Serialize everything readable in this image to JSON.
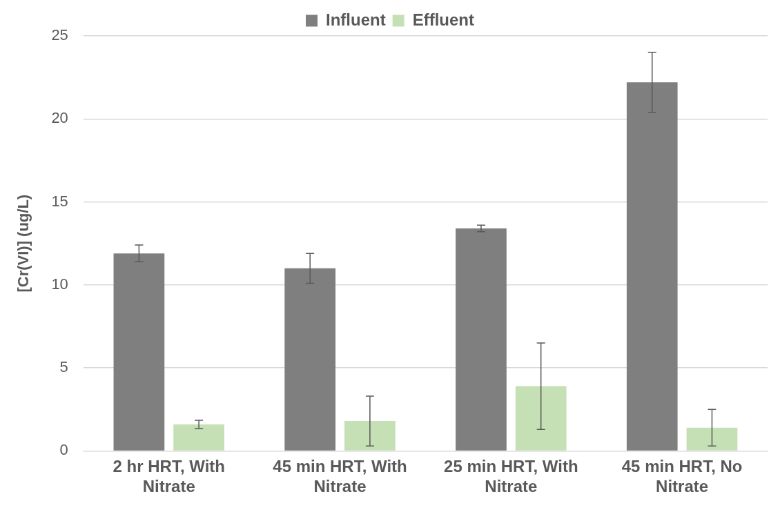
{
  "chart_data": {
    "type": "bar",
    "ylabel": "[Cr(VI)] (ug/L)",
    "categories": [
      "2 hr HRT, With Nitrate",
      "45 min HRT, With Nitrate",
      "25 min HRT, With Nitrate",
      "45 min HRT, No Nitrate"
    ],
    "series": [
      {
        "name": "Influent",
        "color": "#7f7f7f",
        "values": [
          11.9,
          11.0,
          13.4,
          22.2
        ],
        "errors": [
          0.5,
          0.9,
          0.2,
          1.8
        ]
      },
      {
        "name": "Effluent",
        "color": "#c5e0b4",
        "values": [
          1.6,
          1.8,
          3.9,
          1.4
        ],
        "errors": [
          0.25,
          1.5,
          2.6,
          1.1
        ]
      }
    ],
    "ylim": [
      0,
      25
    ],
    "yticks": [
      0,
      5,
      10,
      15,
      20,
      25
    ],
    "grid": "y",
    "legend": "top"
  }
}
